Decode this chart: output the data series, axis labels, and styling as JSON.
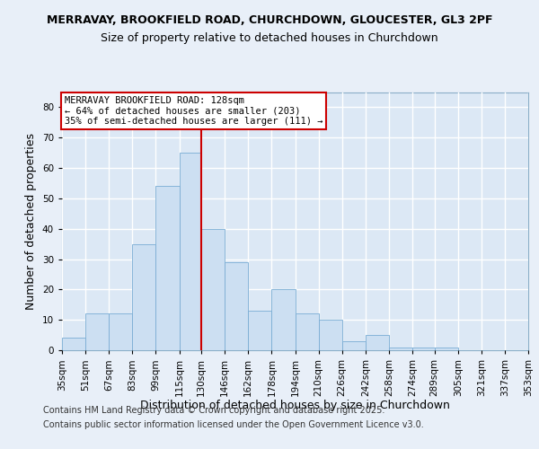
{
  "title1": "MERRAVAY, BROOKFIELD ROAD, CHURCHDOWN, GLOUCESTER, GL3 2PF",
  "title2": "Size of property relative to detached houses in Churchdown",
  "xlabel": "Distribution of detached houses by size in Churchdown",
  "ylabel": "Number of detached properties",
  "bin_edges": [
    35,
    51,
    67,
    83,
    99,
    115,
    130,
    146,
    162,
    178,
    194,
    210,
    226,
    242,
    258,
    274,
    289,
    305,
    321,
    337,
    353
  ],
  "heights": [
    4,
    12,
    12,
    35,
    54,
    65,
    40,
    29,
    13,
    20,
    12,
    10,
    3,
    5,
    1,
    1,
    1,
    0,
    0,
    0
  ],
  "bar_color": "#ccdff2",
  "bar_edge_color": "#7aadd4",
  "vline_x": 130,
  "vline_color": "#cc0000",
  "annotation_text": "MERRAVAY BROOKFIELD ROAD: 128sqm\n← 64% of detached houses are smaller (203)\n35% of semi-detached houses are larger (111) →",
  "annotation_box_color": "#ffffff",
  "annotation_box_edge": "#cc0000",
  "ylim": [
    0,
    85
  ],
  "yticks": [
    0,
    10,
    20,
    30,
    40,
    50,
    60,
    70,
    80
  ],
  "footer_line1": "Contains HM Land Registry data © Crown copyright and database right 2025.",
  "footer_line2": "Contains public sector information licensed under the Open Government Licence v3.0.",
  "background_color": "#e8eff8",
  "plot_bg_color": "#dce8f5",
  "grid_color": "#ffffff",
  "title1_fontsize": 9,
  "title2_fontsize": 9,
  "axis_label_fontsize": 9,
  "tick_fontsize": 7.5,
  "annotation_fontsize": 7.5,
  "footer_fontsize": 7
}
